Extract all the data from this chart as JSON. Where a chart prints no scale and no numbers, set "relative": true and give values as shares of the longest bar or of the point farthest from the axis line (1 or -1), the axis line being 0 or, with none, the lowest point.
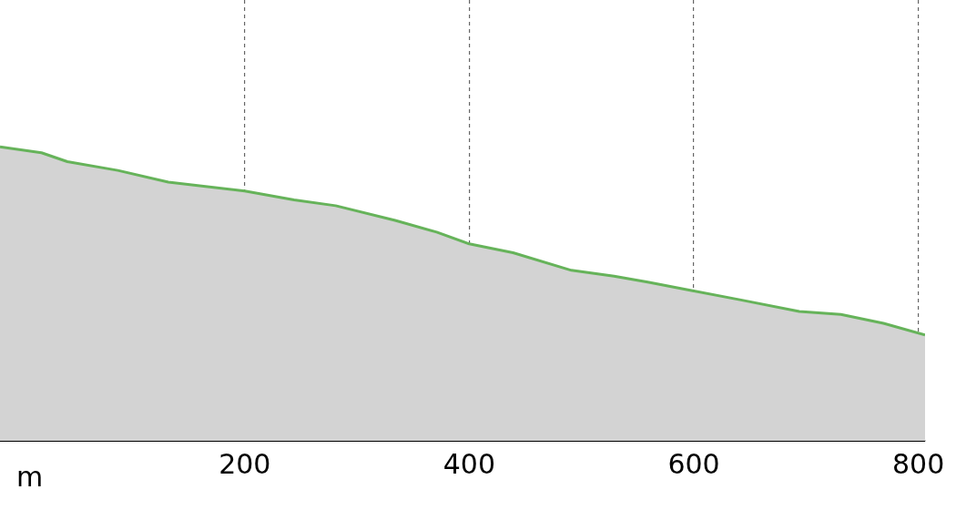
{
  "chart_data": {
    "type": "area",
    "xlabel": "m",
    "relative": true,
    "x": [
      -18,
      19,
      42,
      87,
      132,
      200,
      244,
      281,
      334,
      371,
      400,
      439,
      491,
      529,
      559,
      600,
      641,
      694,
      731,
      769,
      806
    ],
    "series": [
      {
        "color": "#66b35a",
        "values": [
          1.0,
          0.98,
          0.95,
          0.92,
          0.88,
          0.85,
          0.82,
          0.8,
          0.75,
          0.71,
          0.67,
          0.64,
          0.58,
          0.56,
          0.54,
          0.51,
          0.48,
          0.44,
          0.43,
          0.4,
          0.36
        ]
      }
    ],
    "xlim": [
      -18,
      806
    ],
    "xticks": [
      200,
      400,
      600,
      800
    ],
    "grid": "x",
    "legend": false
  }
}
